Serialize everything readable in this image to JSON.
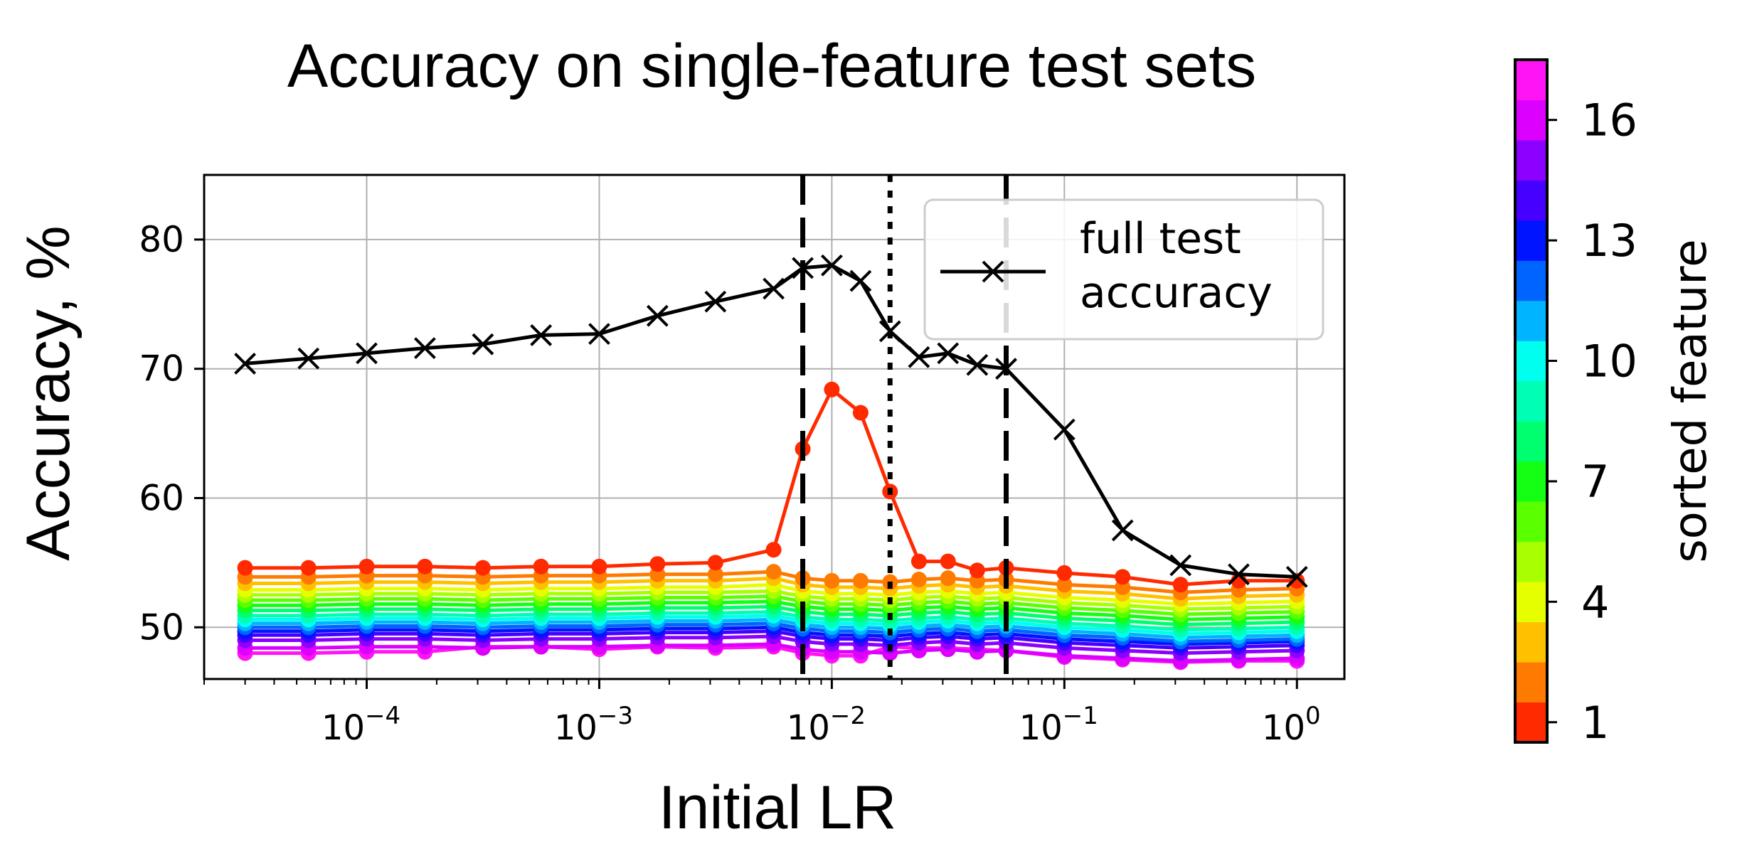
{
  "chart_data": {
    "type": "line",
    "title": "Accuracy on single-feature test sets",
    "xlabel": "Initial LR",
    "ylabel": "Accuracy, %",
    "xscale": "log",
    "xlim": [
      2e-05,
      1.6
    ],
    "ylim": [
      46,
      85
    ],
    "grid": true,
    "x_ticks": [
      {
        "value": 0.0001,
        "base": "10",
        "exp": "−4"
      },
      {
        "value": 0.001,
        "base": "10",
        "exp": "−3"
      },
      {
        "value": 0.01,
        "base": "10",
        "exp": "−2"
      },
      {
        "value": 0.1,
        "base": "10",
        "exp": "−1"
      },
      {
        "value": 1,
        "base": "10",
        "exp": "0"
      }
    ],
    "y_ticks": [
      50,
      60,
      70,
      80
    ],
    "x": [
      3e-05,
      5.62e-05,
      0.0001,
      0.000178,
      0.000316,
      0.000562,
      0.001,
      0.00178,
      0.00316,
      0.00562,
      0.0075,
      0.01,
      0.0133,
      0.0178,
      0.0237,
      0.0316,
      0.0422,
      0.0562,
      0.1,
      0.178,
      0.316,
      0.562,
      1.0
    ],
    "vlines": [
      {
        "x": 0.0075,
        "style": "dashed"
      },
      {
        "x": 0.0178,
        "style": "dotted"
      },
      {
        "x": 0.0562,
        "style": "dashed"
      }
    ],
    "full_series": {
      "name": "full test accuracy",
      "legend_lines": [
        "full test",
        "accuracy"
      ],
      "color": "#000000",
      "marker": "x",
      "values": [
        70.4,
        70.8,
        71.2,
        71.6,
        71.9,
        72.6,
        72.7,
        74.1,
        75.2,
        76.2,
        77.8,
        78.0,
        76.8,
        72.9,
        70.9,
        71.2,
        70.3,
        70.0,
        65.3,
        57.5,
        54.8,
        54.1,
        53.9
      ]
    },
    "feature_series": [
      {
        "feature": 1,
        "color": "#ff2a00",
        "values": [
          54.6,
          54.6,
          54.7,
          54.7,
          54.6,
          54.7,
          54.7,
          54.9,
          55.0,
          56.0,
          63.8,
          68.4,
          66.6,
          60.5,
          55.1,
          55.1,
          54.4,
          54.6,
          54.2,
          53.9,
          53.3,
          53.6,
          53.6
        ]
      },
      {
        "feature": 2,
        "color": "#ff7a00",
        "values": [
          53.9,
          53.9,
          54.0,
          54.0,
          53.9,
          54.0,
          54.0,
          54.1,
          54.1,
          54.3,
          53.8,
          53.6,
          53.6,
          53.5,
          53.7,
          53.8,
          53.6,
          53.7,
          53.3,
          53.1,
          52.7,
          52.9,
          53.0
        ]
      },
      {
        "feature": 3,
        "color": "#ffc000",
        "values": [
          53.4,
          53.4,
          53.5,
          53.5,
          53.4,
          53.5,
          53.5,
          53.6,
          53.6,
          53.8,
          53.3,
          53.1,
          53.1,
          53.0,
          53.2,
          53.3,
          53.1,
          53.2,
          52.8,
          52.6,
          52.2,
          52.4,
          52.5
        ]
      },
      {
        "feature": 4,
        "color": "#e6ff00",
        "values": [
          52.9,
          52.9,
          53.0,
          53.0,
          52.9,
          53.0,
          53.0,
          53.1,
          53.1,
          53.3,
          52.8,
          52.6,
          52.6,
          52.5,
          52.7,
          52.8,
          52.6,
          52.7,
          52.3,
          52.1,
          51.8,
          51.9,
          52.0
        ]
      },
      {
        "feature": 5,
        "color": "#a8ff00",
        "values": [
          52.5,
          52.5,
          52.6,
          52.6,
          52.5,
          52.6,
          52.6,
          52.7,
          52.7,
          52.8,
          52.4,
          52.2,
          52.2,
          52.1,
          52.3,
          52.4,
          52.2,
          52.3,
          51.9,
          51.7,
          51.4,
          51.5,
          51.6
        ]
      },
      {
        "feature": 6,
        "color": "#5aff00",
        "values": [
          52.1,
          52.1,
          52.2,
          52.2,
          52.1,
          52.2,
          52.2,
          52.3,
          52.3,
          52.4,
          52.0,
          51.8,
          51.8,
          51.7,
          51.9,
          52.0,
          51.8,
          51.9,
          51.5,
          51.3,
          51.0,
          51.1,
          51.2
        ]
      },
      {
        "feature": 7,
        "color": "#14ff14",
        "values": [
          51.7,
          51.7,
          51.8,
          51.8,
          51.7,
          51.8,
          51.8,
          51.9,
          51.9,
          52.0,
          51.6,
          51.4,
          51.4,
          51.3,
          51.5,
          51.6,
          51.4,
          51.5,
          51.1,
          50.9,
          50.6,
          50.7,
          50.8
        ]
      },
      {
        "feature": 8,
        "color": "#00ff6e",
        "values": [
          51.3,
          51.3,
          51.4,
          51.4,
          51.3,
          51.4,
          51.4,
          51.5,
          51.5,
          51.6,
          51.2,
          51.0,
          51.0,
          50.9,
          51.1,
          51.2,
          51.0,
          51.1,
          50.7,
          50.5,
          50.2,
          50.3,
          50.4
        ]
      },
      {
        "feature": 9,
        "color": "#00ffb4",
        "values": [
          50.9,
          50.9,
          51.0,
          51.0,
          50.9,
          51.0,
          51.0,
          51.1,
          51.1,
          51.2,
          50.8,
          50.6,
          50.6,
          50.5,
          50.7,
          50.8,
          50.6,
          50.7,
          50.3,
          50.1,
          49.8,
          49.9,
          50.0
        ]
      },
      {
        "feature": 10,
        "color": "#00ffee",
        "values": [
          50.6,
          50.6,
          50.7,
          50.7,
          50.6,
          50.7,
          50.7,
          50.8,
          50.8,
          50.9,
          50.5,
          50.3,
          50.3,
          50.2,
          50.4,
          50.5,
          50.3,
          50.4,
          50.0,
          49.8,
          49.5,
          49.6,
          49.7
        ]
      },
      {
        "feature": 11,
        "color": "#00b4ff",
        "values": [
          50.3,
          50.3,
          50.4,
          50.4,
          50.3,
          50.4,
          50.4,
          50.5,
          50.5,
          50.6,
          50.2,
          50.0,
          50.0,
          49.9,
          50.1,
          50.2,
          50.0,
          50.1,
          49.7,
          49.5,
          49.2,
          49.3,
          49.4
        ]
      },
      {
        "feature": 12,
        "color": "#0064ff",
        "values": [
          50.0,
          50.0,
          50.1,
          50.1,
          50.0,
          50.1,
          50.1,
          50.2,
          50.2,
          50.3,
          49.9,
          49.7,
          49.7,
          49.6,
          49.8,
          49.9,
          49.7,
          49.8,
          49.4,
          49.2,
          48.9,
          49.0,
          49.1
        ]
      },
      {
        "feature": 13,
        "color": "#0014ff",
        "values": [
          49.7,
          49.7,
          49.8,
          49.8,
          49.7,
          49.8,
          49.8,
          49.9,
          49.9,
          50.0,
          49.6,
          49.4,
          49.4,
          49.3,
          49.5,
          49.6,
          49.4,
          49.5,
          49.1,
          48.9,
          48.7,
          48.8,
          48.9
        ]
      },
      {
        "feature": 14,
        "color": "#4600ff",
        "values": [
          49.4,
          49.4,
          49.5,
          49.5,
          49.4,
          49.5,
          49.5,
          49.6,
          49.6,
          49.7,
          49.3,
          49.1,
          49.1,
          49.0,
          49.2,
          49.3,
          49.1,
          49.2,
          48.8,
          48.6,
          48.4,
          48.5,
          48.6
        ]
      },
      {
        "feature": 15,
        "color": "#8c00ff",
        "values": [
          49.0,
          49.0,
          49.1,
          49.1,
          49.0,
          49.1,
          49.1,
          49.2,
          49.2,
          49.3,
          48.9,
          48.7,
          48.7,
          48.6,
          48.8,
          48.9,
          48.7,
          48.8,
          48.4,
          48.2,
          48.0,
          48.1,
          48.2
        ]
      },
      {
        "feature": 16,
        "color": "#dc00ff",
        "values": [
          48.4,
          48.4,
          48.5,
          48.5,
          48.4,
          48.5,
          48.5,
          48.6,
          48.6,
          48.7,
          48.3,
          48.1,
          48.1,
          48.0,
          48.2,
          48.3,
          48.1,
          48.2,
          47.8,
          47.6,
          47.4,
          47.5,
          47.6
        ]
      },
      {
        "feature": 17,
        "color": "#ff14f5",
        "values": [
          48.0,
          48.0,
          48.1,
          48.1,
          48.5,
          48.5,
          48.3,
          48.5,
          48.4,
          48.5,
          48.0,
          47.8,
          47.8,
          48.5,
          48.4,
          48.4,
          48.3,
          48.2,
          47.7,
          47.5,
          47.3,
          47.4,
          47.4
        ]
      }
    ],
    "colorbar": {
      "label": "sorted feature",
      "range": [
        0.5,
        17.5
      ],
      "ticks": [
        1,
        4,
        7,
        10,
        13,
        16
      ],
      "colors": [
        "#ff2a00",
        "#ff7a00",
        "#ffc000",
        "#e6ff00",
        "#a8ff00",
        "#5aff00",
        "#14ff14",
        "#00ff6e",
        "#00ffb4",
        "#00ffee",
        "#00b4ff",
        "#0064ff",
        "#0014ff",
        "#4600ff",
        "#8c00ff",
        "#dc00ff",
        "#ff14f5"
      ]
    }
  }
}
